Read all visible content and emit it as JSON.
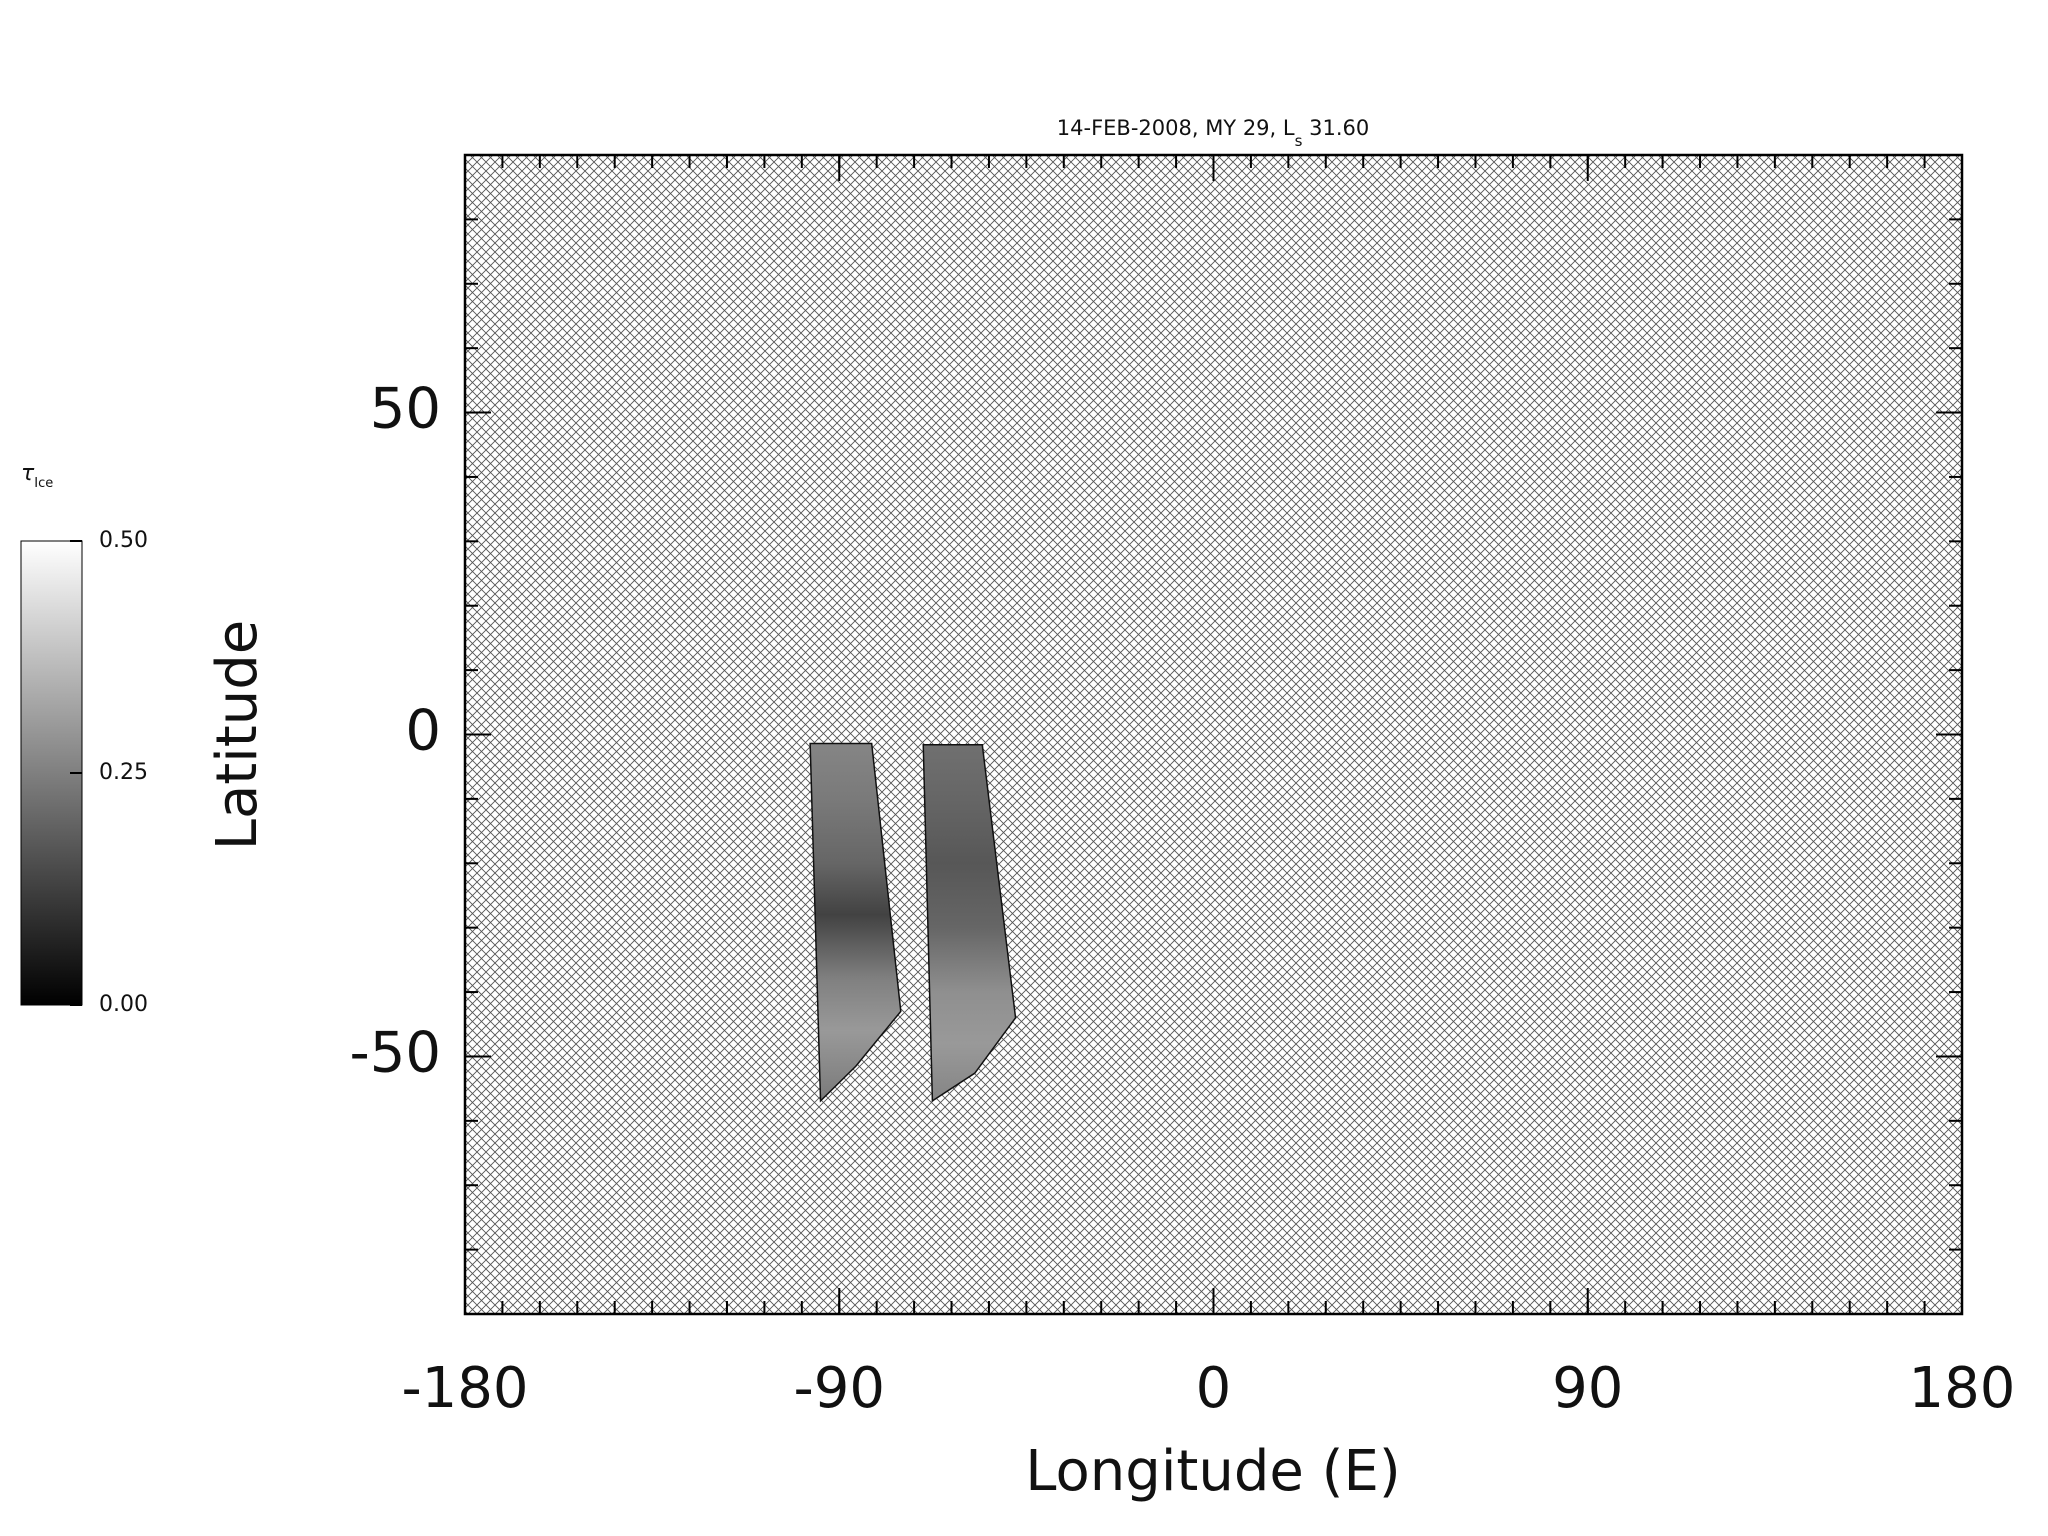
{
  "chart_data": {
    "type": "map",
    "title": {
      "text": "14-FEB-2008, MY 29,  L",
      "subscript": "s",
      "tail": " 31.60"
    },
    "xlabel": "Longitude (E)",
    "ylabel": "Latitude",
    "xlim": [
      -180,
      180
    ],
    "xticks": [
      -180,
      -90,
      0,
      90,
      180
    ],
    "xminor": 9,
    "ylim": [
      -90,
      90
    ],
    "yticks": [
      -50,
      0,
      50
    ],
    "yminor": 10,
    "background": "crosshatch",
    "colorbar": {
      "label": "τ",
      "label_subscript": "Ice",
      "colormap": "gray",
      "lim": [
        0,
        0.5
      ],
      "ticks": [
        {
          "value": 0,
          "label": "0.00"
        },
        {
          "value": 0.25,
          "label": "0.25"
        },
        {
          "value": 0.5,
          "label": "0.50"
        }
      ]
    },
    "swaths": [
      {
        "lon": [
          -97,
          -82.2,
          -75.2,
          -86,
          -94.5
        ],
        "lat": [
          -1.4,
          -1.4,
          -43,
          -51.5,
          -56.9
        ],
        "profile_lat": [
          -1.4,
          -10,
          -20,
          -28,
          -38,
          -46,
          -56.9
        ],
        "values": [
          0.26,
          0.24,
          0.2,
          0.13,
          0.25,
          0.3,
          0.24
        ]
      },
      {
        "lon": [
          -69.8,
          -55.6,
          -47.6,
          -57.4,
          -67.6
        ],
        "lat": [
          -1.6,
          -1.6,
          -44,
          -52.6,
          -56.9
        ],
        "profile_lat": [
          -1.6,
          -10,
          -20,
          -30,
          -40,
          -48,
          -56.9
        ],
        "values": [
          0.22,
          0.2,
          0.17,
          0.2,
          0.28,
          0.3,
          0.26
        ]
      }
    ]
  }
}
